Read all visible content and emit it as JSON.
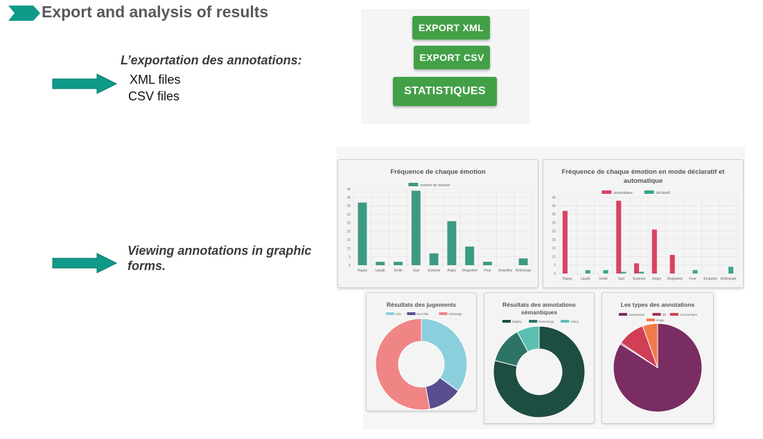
{
  "header": {
    "title": "Export and analysis of results"
  },
  "export_section": {
    "heading": "L’exportation des annotations:",
    "items": [
      "XML files",
      "CSV files"
    ]
  },
  "view_section": {
    "heading_line1": "Viewing annotations in graphic",
    "heading_line2": "forms."
  },
  "buttons": {
    "export_xml": "EXPORT XML",
    "export_csv": "EXPORT CSV",
    "statistiques": "STATISTIQUES"
  },
  "colors": {
    "teal_arrow": "#0f9a8a",
    "button_green": "#43a047",
    "bar_teal": "#3d9a82",
    "bar_red": "#d9435f",
    "bar_teal2": "#3aa590"
  },
  "chart_data": [
    {
      "type": "bar",
      "title": "Fréquence de chaque émotion",
      "categories": [
        "Happy",
        "Laugh",
        "Smile",
        "Sad",
        "Surprise",
        "Angry",
        "Disgusted",
        "Fear",
        "Empathy",
        "ItsStrange"
      ],
      "series": [
        {
          "name": "nombre de réaction",
          "values": [
            37,
            2,
            2,
            44,
            7,
            26,
            11,
            2,
            0,
            4
          ]
        }
      ],
      "ylim": [
        0,
        45
      ],
      "yticks": [
        0,
        5,
        10,
        15,
        20,
        25,
        30,
        35,
        40,
        45
      ],
      "legend": "top"
    },
    {
      "type": "bar",
      "title_line1": "Fréquence de chaque émotion en mode déclaratif et",
      "title_line2": "automatique",
      "categories": [
        "Happy",
        "Laugh",
        "Smile",
        "Sad",
        "Surprise",
        "Angry",
        "Disgusted",
        "Fear",
        "Empathy",
        "ItsStrange"
      ],
      "series": [
        {
          "name": "automatique",
          "values": [
            37,
            0,
            0,
            43,
            6,
            26,
            11,
            0,
            0,
            0
          ]
        },
        {
          "name": "déclaratif",
          "values": [
            0,
            2,
            2,
            1,
            1,
            0,
            0,
            2,
            0,
            4
          ]
        }
      ],
      "ylim": [
        0,
        45
      ],
      "yticks": [
        0,
        5,
        10,
        15,
        20,
        25,
        30,
        35,
        40,
        45
      ],
      "legend": "top"
    },
    {
      "type": "pie",
      "title": "Résultats des jugements",
      "labels": [
        "Like",
        "Don't like",
        "ItsStrange"
      ],
      "values": [
        35,
        12,
        53
      ],
      "colors": [
        "#8ccfdc",
        "#5a4d8f",
        "#f08585"
      ],
      "donut": true
    },
    {
      "type": "pie",
      "title_line1": "Résultats des annotations",
      "title_line2": "sémantiques",
      "labels": [
        "Display",
        "Dramaturgy",
        "Acting"
      ],
      "values": [
        79,
        13,
        8
      ],
      "colors": [
        "#1e4d41",
        "#2e7466",
        "#5bbfb4"
      ],
      "donut": true
    },
    {
      "type": "pie",
      "title": "Les types des annotations",
      "labels": [
        "Automatique",
        "SE",
        "Commentaire",
        "Image"
      ],
      "values": [
        84,
        0.5,
        10,
        5.5
      ],
      "colors": [
        "#7a2d63",
        "#a3305c",
        "#d03f55",
        "#f07a4a"
      ],
      "donut": false
    }
  ]
}
